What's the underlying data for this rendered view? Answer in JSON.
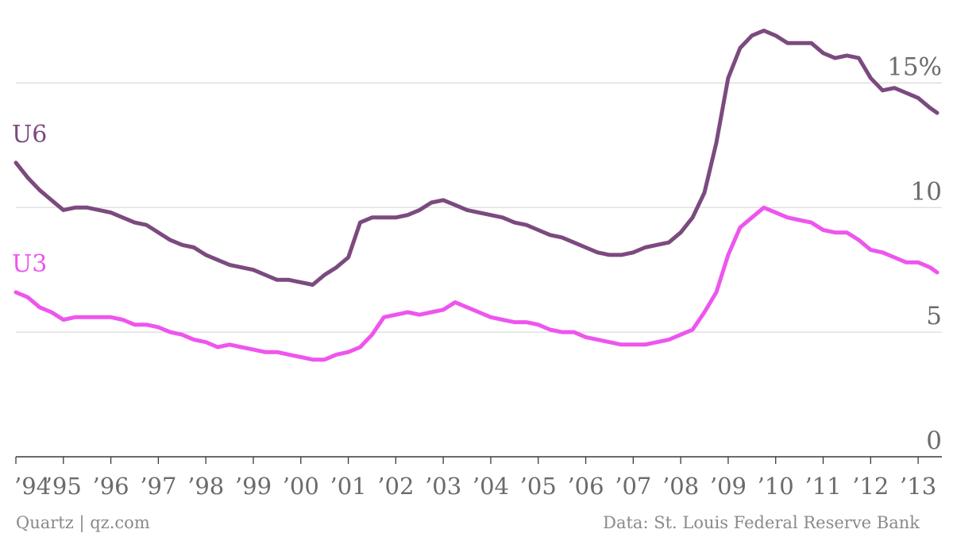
{
  "chart_data": {
    "type": "line",
    "title": "",
    "xlabel": "",
    "ylabel": "",
    "ylim": [
      0,
      17.5
    ],
    "xlim": [
      1994.0,
      2013.5
    ],
    "y_ticks": [
      0,
      5,
      10,
      15
    ],
    "y_tick_labels": [
      "0",
      "5",
      "10",
      "15%"
    ],
    "x_ticks": [
      1994,
      1995,
      1996,
      1997,
      1998,
      1999,
      2000,
      2001,
      2002,
      2003,
      2004,
      2005,
      2006,
      2007,
      2008,
      2009,
      2010,
      2011,
      2012,
      2013
    ],
    "x_tick_labels": [
      "’94",
      "’95",
      "’96",
      "’97",
      "’98",
      "’99",
      "’00",
      "’01",
      "’02",
      "’03",
      "’04",
      "’05",
      "’06",
      "’07",
      "’08",
      "’09",
      "’10",
      "’11",
      "’12",
      "’13"
    ],
    "grid": true,
    "legend": "inline labels left",
    "series": [
      {
        "name": "U6",
        "color": "#7b4a7f",
        "x": [
          1994.0,
          1994.25,
          1994.5,
          1994.75,
          1995.0,
          1995.25,
          1995.5,
          1995.75,
          1996.0,
          1996.25,
          1996.5,
          1996.75,
          1997.0,
          1997.25,
          1997.5,
          1997.75,
          1998.0,
          1998.25,
          1998.5,
          1998.75,
          1999.0,
          1999.25,
          1999.5,
          1999.75,
          2000.0,
          2000.25,
          2000.5,
          2000.75,
          2001.0,
          2001.25,
          2001.5,
          2001.75,
          2002.0,
          2002.25,
          2002.5,
          2002.75,
          2003.0,
          2003.25,
          2003.5,
          2003.75,
          2004.0,
          2004.25,
          2004.5,
          2004.75,
          2005.0,
          2005.25,
          2005.5,
          2005.75,
          2006.0,
          2006.25,
          2006.5,
          2006.75,
          2007.0,
          2007.25,
          2007.5,
          2007.75,
          2008.0,
          2008.25,
          2008.5,
          2008.75,
          2009.0,
          2009.25,
          2009.5,
          2009.75,
          2010.0,
          2010.25,
          2010.5,
          2010.75,
          2011.0,
          2011.25,
          2011.5,
          2011.75,
          2012.0,
          2012.25,
          2012.5,
          2012.75,
          2013.0,
          2013.25,
          2013.4
        ],
        "values": [
          11.8,
          11.2,
          10.7,
          10.3,
          9.9,
          10.0,
          10.0,
          9.9,
          9.8,
          9.6,
          9.4,
          9.3,
          9.0,
          8.7,
          8.5,
          8.4,
          8.1,
          7.9,
          7.7,
          7.6,
          7.5,
          7.3,
          7.1,
          7.1,
          7.0,
          6.9,
          7.3,
          7.6,
          8.0,
          9.4,
          9.6,
          9.6,
          9.6,
          9.7,
          9.9,
          10.2,
          10.3,
          10.1,
          9.9,
          9.8,
          9.7,
          9.6,
          9.4,
          9.3,
          9.1,
          8.9,
          8.8,
          8.6,
          8.4,
          8.2,
          8.1,
          8.1,
          8.2,
          8.4,
          8.5,
          8.6,
          9.0,
          9.6,
          10.6,
          12.6,
          15.2,
          16.4,
          16.9,
          17.1,
          16.9,
          16.6,
          16.6,
          16.6,
          16.2,
          16.0,
          16.1,
          16.0,
          15.2,
          14.7,
          14.8,
          14.6,
          14.4,
          14.0,
          13.8
        ]
      },
      {
        "name": "U3",
        "color": "#ee55ee",
        "x": [
          1994.0,
          1994.25,
          1994.5,
          1994.75,
          1995.0,
          1995.25,
          1995.5,
          1995.75,
          1996.0,
          1996.25,
          1996.5,
          1996.75,
          1997.0,
          1997.25,
          1997.5,
          1997.75,
          1998.0,
          1998.25,
          1998.5,
          1998.75,
          1999.0,
          1999.25,
          1999.5,
          1999.75,
          2000.0,
          2000.25,
          2000.5,
          2000.75,
          2001.0,
          2001.25,
          2001.5,
          2001.75,
          2002.0,
          2002.25,
          2002.5,
          2002.75,
          2003.0,
          2003.25,
          2003.5,
          2003.75,
          2004.0,
          2004.25,
          2004.5,
          2004.75,
          2005.0,
          2005.25,
          2005.5,
          2005.75,
          2006.0,
          2006.25,
          2006.5,
          2006.75,
          2007.0,
          2007.25,
          2007.5,
          2007.75,
          2008.0,
          2008.25,
          2008.5,
          2008.75,
          2009.0,
          2009.25,
          2009.5,
          2009.75,
          2010.0,
          2010.25,
          2010.5,
          2010.75,
          2011.0,
          2011.25,
          2011.5,
          2011.75,
          2012.0,
          2012.25,
          2012.5,
          2012.75,
          2013.0,
          2013.25,
          2013.4
        ],
        "values": [
          6.6,
          6.4,
          6.0,
          5.8,
          5.5,
          5.6,
          5.6,
          5.6,
          5.6,
          5.5,
          5.3,
          5.3,
          5.2,
          5.0,
          4.9,
          4.7,
          4.6,
          4.4,
          4.5,
          4.4,
          4.3,
          4.2,
          4.2,
          4.1,
          4.0,
          3.9,
          3.9,
          4.1,
          4.2,
          4.4,
          4.9,
          5.6,
          5.7,
          5.8,
          5.7,
          5.8,
          5.9,
          6.2,
          6.0,
          5.8,
          5.6,
          5.5,
          5.4,
          5.4,
          5.3,
          5.1,
          5.0,
          5.0,
          4.8,
          4.7,
          4.6,
          4.5,
          4.5,
          4.5,
          4.6,
          4.7,
          4.9,
          5.1,
          5.8,
          6.6,
          8.1,
          9.2,
          9.6,
          10.0,
          9.8,
          9.6,
          9.5,
          9.4,
          9.1,
          9.0,
          9.0,
          8.7,
          8.3,
          8.2,
          8.0,
          7.8,
          7.8,
          7.6,
          7.4
        ]
      }
    ]
  },
  "footer": {
    "source_left": "Quartz | qz.com",
    "source_right": "Data: St. Louis Federal Reserve Bank"
  }
}
